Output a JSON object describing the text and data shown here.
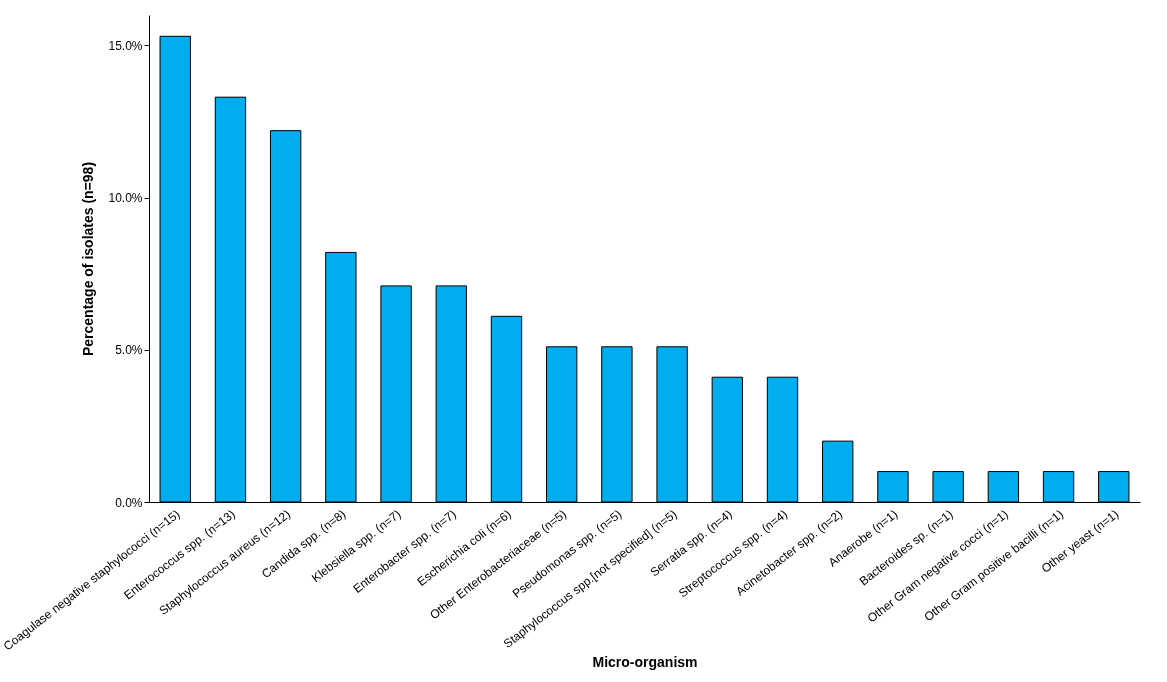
{
  "chart_data": {
    "type": "bar",
    "xlabel": "Micro-organism",
    "ylabel": "Percentage of isolates (n=98)",
    "categories": [
      "Coagulase negative staphylococci (n=15)",
      "Enterococcus spp. (n=13)",
      "Staphylococcus aureus (n=12)",
      "Candida spp. (n=8)",
      "Klebsiella spp. (n=7)",
      "Enterobacter spp. (n=7)",
      "Escherichia coli (n=6)",
      "Other Enterobacteriaceae (n=5)",
      "Pseudomonas spp. (n=5)",
      "Staphylococcus spp.[not specified] (n=5)",
      "Serratia spp. (n=4)",
      "Streptococcus spp. (n=4)",
      "Acinetobacter spp. (n=2)",
      "Anaerobe (n=1)",
      "Bacteroides sp. (n=1)",
      "Other Gram negative cocci (n=1)",
      "Other Gram positive bacilli (n=1)",
      "Other yeast (n=1)"
    ],
    "values": [
      15.3,
      13.3,
      12.2,
      8.2,
      7.1,
      7.1,
      6.1,
      5.1,
      5.1,
      5.1,
      4.1,
      4.1,
      2.0,
      1.0,
      1.0,
      1.0,
      1.0,
      1.0
    ],
    "color": "#00aeef",
    "ylim": [
      0,
      16
    ],
    "yticks": [
      {
        "value": 0,
        "label": "0.0%"
      },
      {
        "value": 5,
        "label": "5.0%"
      },
      {
        "value": 10,
        "label": "10.0%"
      },
      {
        "value": 15,
        "label": "15.0%"
      }
    ],
    "grid": false
  }
}
